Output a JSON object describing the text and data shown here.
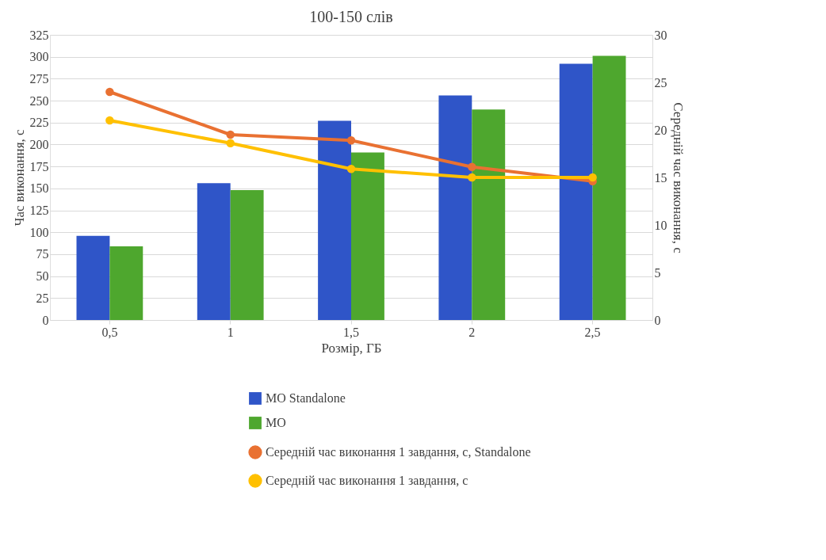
{
  "chart_data": {
    "type": "bar",
    "title": "100-150 слів",
    "xlabel": "Розмір, ГБ",
    "ylabel": "Час виконання, с",
    "y2label": "Середній час виконання, с",
    "categories": [
      "0,5",
      "1",
      "1,5",
      "2",
      "2,5"
    ],
    "series": [
      {
        "name": "MO Standalone",
        "color": "#2f55c8",
        "values": [
          96,
          156,
          227,
          256,
          292
        ]
      },
      {
        "name": "MO",
        "color": "#4ea72e",
        "values": [
          84,
          148,
          191,
          240,
          301
        ]
      },
      {
        "name": "Середній час виконання 1 завдання, с, Standalone",
        "type": "line",
        "axis": "y2",
        "color": "#e97132",
        "values": [
          24.0,
          19.5,
          18.9,
          16.1,
          14.6
        ]
      },
      {
        "name": "Середній час виконання 1 завдання, с",
        "type": "line",
        "axis": "y2",
        "color": "#ffc000",
        "values": [
          21.0,
          18.6,
          15.9,
          15.0,
          15.0
        ]
      }
    ],
    "ylim": [
      0,
      325
    ],
    "yticks": [
      0,
      25,
      50,
      75,
      100,
      125,
      150,
      175,
      200,
      225,
      250,
      275,
      300,
      325
    ],
    "y2lim": [
      0,
      30
    ],
    "y2ticks": [
      0,
      5,
      10,
      15,
      20,
      25,
      30
    ],
    "grid": "y",
    "legend": "bottom",
    "marker": "circle",
    "line_style": "solid"
  }
}
